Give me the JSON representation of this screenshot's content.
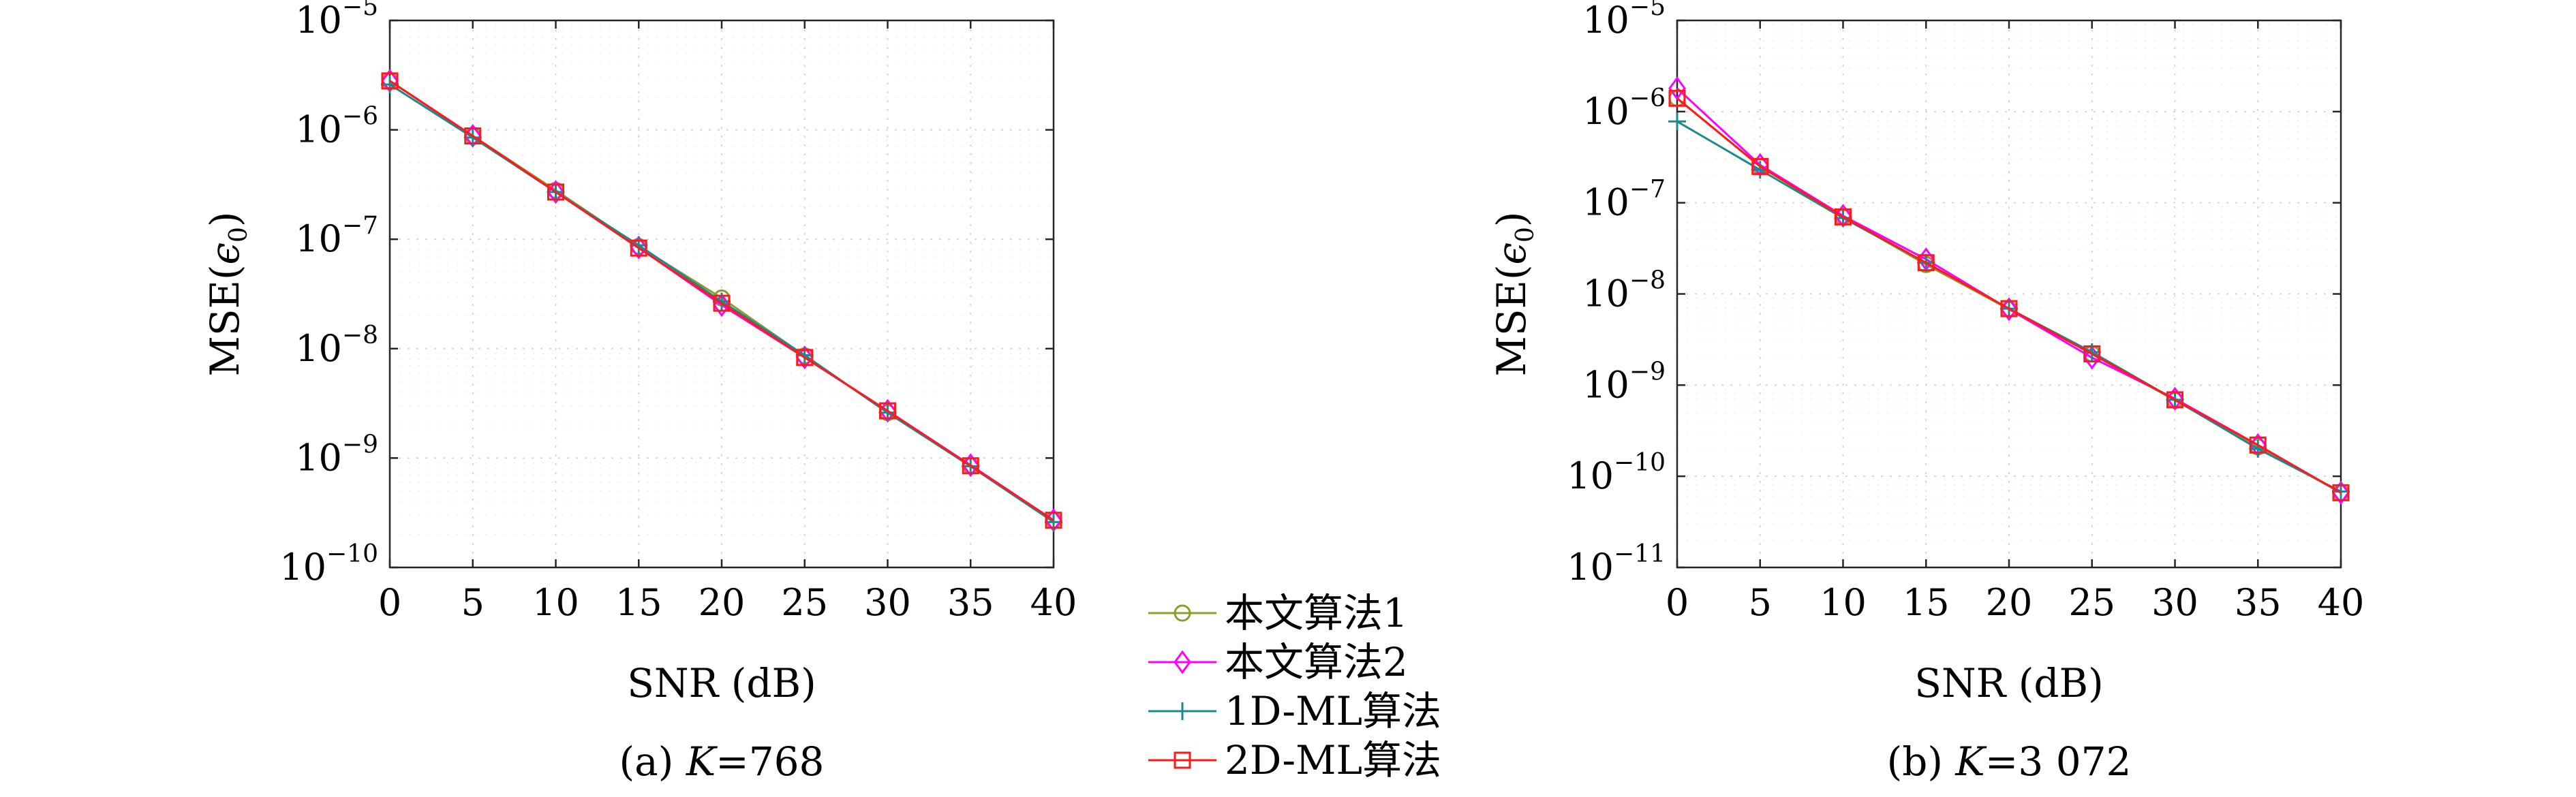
{
  "chart_data": [
    {
      "type": "line",
      "xlabel": "SNR (dB)",
      "ylabel_main": "MSE(",
      "ylabel_symbol": "ϵ",
      "ylabel_sub": "0",
      "ylabel_close": ")",
      "caption_prefix": "(a) ",
      "caption_var": "K",
      "caption_value": "=768",
      "y_scale": "log",
      "xlim": [
        0,
        40
      ],
      "ylim": [
        1e-10,
        1e-05
      ],
      "x_ticks": [
        "0",
        "5",
        "10",
        "15",
        "20",
        "25",
        "30",
        "35",
        "40"
      ],
      "y_ticks": [
        {
          "base": "10",
          "exp": "−10"
        },
        {
          "base": "10",
          "exp": "−9"
        },
        {
          "base": "10",
          "exp": "−8"
        },
        {
          "base": "10",
          "exp": "−7"
        },
        {
          "base": "10",
          "exp": "−6"
        },
        {
          "base": "10",
          "exp": "−5"
        }
      ],
      "grid": true,
      "x": [
        0,
        5,
        10,
        15,
        20,
        25,
        30,
        35,
        40
      ],
      "series": [
        {
          "name": "本文算法1",
          "values": [
            2.8e-06,
            8.8e-07,
            2.8e-07,
            8.6e-08,
            2.9e-08,
            8.6e-09,
            2.6e-09,
            8.5e-10,
            2.7e-10
          ]
        },
        {
          "name": "本文算法2",
          "values": [
            2.8e-06,
            8.8e-07,
            2.7e-07,
            8.4e-08,
            2.5e-08,
            8.3e-09,
            2.7e-09,
            8.6e-10,
            2.7e-10
          ]
        },
        {
          "name": "1D-ML算法",
          "values": [
            2.6e-06,
            8.5e-07,
            2.7e-07,
            8.8e-08,
            2.7e-08,
            8.7e-09,
            2.6e-09,
            8.4e-10,
            2.6e-10
          ]
        },
        {
          "name": "2D-ML算法",
          "values": [
            2.8e-06,
            8.8e-07,
            2.7e-07,
            8.3e-08,
            2.6e-08,
            8.3e-09,
            2.7e-09,
            8.5e-10,
            2.7e-10
          ]
        }
      ]
    },
    {
      "type": "line",
      "xlabel": "SNR (dB)",
      "ylabel_main": "MSE(",
      "ylabel_symbol": "ϵ",
      "ylabel_sub": "0",
      "ylabel_close": ")",
      "caption_prefix": "(b) ",
      "caption_var": "K",
      "caption_value": "=3 072",
      "y_scale": "log",
      "xlim": [
        0,
        40
      ],
      "ylim": [
        1e-11,
        1e-05
      ],
      "x_ticks": [
        "0",
        "5",
        "10",
        "15",
        "20",
        "25",
        "30",
        "35",
        "40"
      ],
      "y_ticks": [
        {
          "base": "10",
          "exp": "−11"
        },
        {
          "base": "10",
          "exp": "−10"
        },
        {
          "base": "10",
          "exp": "−9"
        },
        {
          "base": "10",
          "exp": "−8"
        },
        {
          "base": "10",
          "exp": "−7"
        },
        {
          "base": "10",
          "exp": "−6"
        },
        {
          "base": "10",
          "exp": "−5"
        }
      ],
      "grid": true,
      "x": [
        0,
        5,
        10,
        15,
        20,
        25,
        30,
        35,
        40
      ],
      "series": [
        {
          "name": "本文算法1",
          "values": [
            1.4e-06,
            2.5e-07,
            7e-08,
            2.1e-08,
            6.8e-09,
            2.2e-09,
            6.8e-10,
            2.1e-10,
            6.6e-11
          ]
        },
        {
          "name": "本文算法2",
          "values": [
            1.8e-06,
            2.6e-07,
            7.2e-08,
            2.4e-08,
            6.8e-09,
            2e-09,
            7.1e-10,
            2.2e-10,
            6.6e-11
          ]
        },
        {
          "name": "1D-ML算法",
          "values": [
            7.8e-07,
            2.3e-07,
            6.8e-08,
            2.2e-08,
            6.9e-09,
            2.3e-09,
            6.9e-10,
            2e-10,
            6.8e-11
          ]
        },
        {
          "name": "2D-ML算法",
          "values": [
            1.4e-06,
            2.5e-07,
            7e-08,
            2.2e-08,
            6.9e-09,
            2.2e-09,
            6.9e-10,
            2.2e-10,
            6.6e-11
          ]
        }
      ]
    }
  ],
  "legend": {
    "placement": "bottom-center",
    "entries": [
      {
        "label": "本文算法1",
        "color": "#8f9a2f",
        "marker": "circle"
      },
      {
        "label": "本文算法2",
        "color": "#ff00ff",
        "marker": "diamond"
      },
      {
        "label": "1D-ML算法",
        "color": "#1a8a8f",
        "marker": "plus"
      },
      {
        "label": "2D-ML算法",
        "color": "#ff1a1a",
        "marker": "square"
      }
    ]
  }
}
